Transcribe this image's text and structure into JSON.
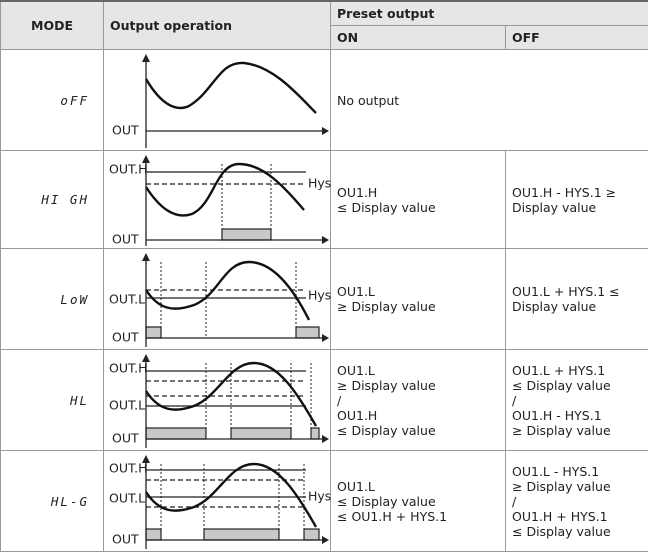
{
  "header": {
    "mode": "MODE",
    "operation": "Output operation",
    "preset": "Preset output",
    "on": "ON",
    "off": "OFF"
  },
  "rows": [
    {
      "mode": "oFF",
      "labels": [
        "OUT"
      ],
      "on": [
        "No output"
      ]
    },
    {
      "mode": "HI GH",
      "labels": [
        "OUT.H",
        "Hys",
        "OUT"
      ],
      "on": [
        "OU1.H",
        "≤ Display value"
      ],
      "off": [
        "OU1.H - HYS.1 ≥",
        "Display value"
      ]
    },
    {
      "mode": "LoW",
      "labels": [
        "OUT.L",
        "Hys",
        "OUT"
      ],
      "on": [
        "OU1.L",
        "≥ Display value"
      ],
      "off": [
        "OU1.L + HYS.1 ≤",
        "Display value"
      ]
    },
    {
      "mode": "HL",
      "labels": [
        "OUT.H",
        "OUT.L",
        "OUT"
      ],
      "on": [
        "OU1.L",
        "≥ Display value",
        "/",
        "OU1.H",
        "≤ Display value"
      ],
      "off": [
        "OU1.L + HYS.1",
        "≤ Display value",
        "/",
        "OU1.H - HYS.1",
        "≥ Display value"
      ]
    },
    {
      "mode": "HL-G",
      "labels": [
        "OUT.H",
        "OUT.L",
        "Hys",
        "OUT"
      ],
      "on": [
        "OU1.L",
        "≤ Display value",
        "≤ OU1.H + HYS.1"
      ],
      "off": [
        "OU1.L - HYS.1",
        "≥ Display value",
        "/",
        "OU1.H + HYS.1",
        "≤ Display value"
      ]
    }
  ]
}
